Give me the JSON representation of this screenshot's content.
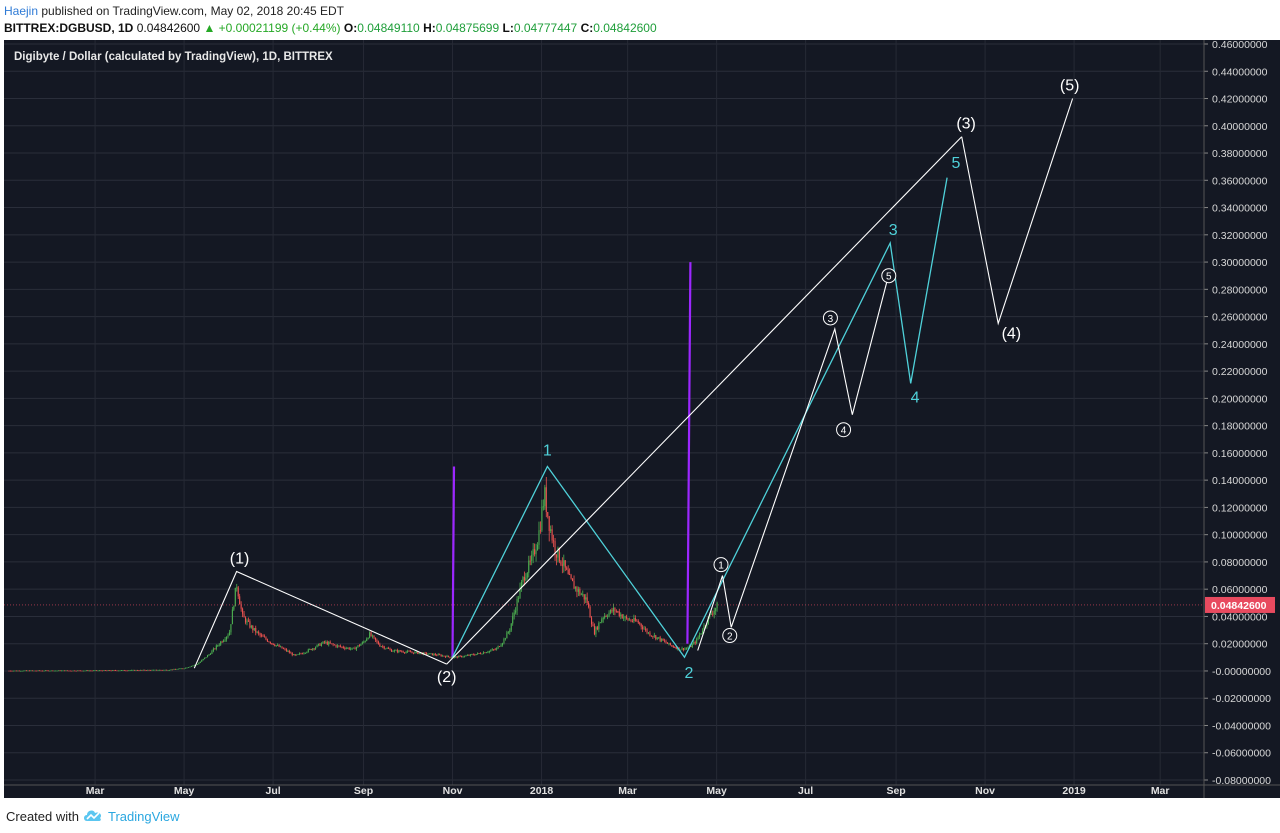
{
  "header": {
    "author": "Haejin",
    "published": "published on TradingView.com, May 02, 2018 20:45 EDT",
    "symbol": "BITTREX:DGBUSD, 1D",
    "last": "0.04842600",
    "change": "▲ +0.00021199 (+0.44%)",
    "o_label": "O:",
    "o_value": "0.04849110",
    "h_label": "H:",
    "h_value": "0.04875699",
    "l_label": "L:",
    "l_value": "0.04777447",
    "c_label": "C:",
    "c_value": "0.04842600"
  },
  "footer": {
    "created_with": "Created with",
    "brand": "TradingView"
  },
  "colors": {
    "background": "#141823",
    "up": "#4caf50",
    "down": "#ef5350",
    "cyan": "#4fd1d9",
    "purple": "#9c27ff",
    "white": "#ffffff",
    "price_tag": "#e84a5f"
  },
  "chart_data": {
    "type": "line",
    "title": "Digibyte / Dollar (calculated by TradingView), 1D, BITTREX",
    "price_tag": "0.04842600",
    "ylim": [
      -0.08,
      0.46
    ],
    "y_ticks": [
      0.46,
      0.44,
      0.42,
      0.4,
      0.38,
      0.36,
      0.34,
      0.32,
      0.3,
      0.28,
      0.26,
      0.24,
      0.22,
      0.2,
      0.18,
      0.16,
      0.14,
      0.12,
      0.1,
      0.08,
      0.06,
      0.04,
      0.02,
      0.0,
      -0.02,
      -0.04,
      -0.06,
      -0.08
    ],
    "y_tick_labels": [
      "0.46000000",
      "0.44000000",
      "0.42000000",
      "0.40000000",
      "0.38000000",
      "0.36000000",
      "0.34000000",
      "0.32000000",
      "0.30000000",
      "0.28000000",
      "0.26000000",
      "0.24000000",
      "0.22000000",
      "0.20000000",
      "0.18000000",
      "0.16000000",
      "0.14000000",
      "0.12000000",
      "0.10000000",
      "0.08000000",
      "0.06000000",
      "0.04000000",
      "0.02000000",
      "-0.00000000",
      "-0.02000000",
      "-0.04000000",
      "-0.06000000",
      "-0.08000000"
    ],
    "x_ticks": [
      {
        "label": "Mar",
        "date": "2017-03-01"
      },
      {
        "label": "May",
        "date": "2017-05-01"
      },
      {
        "label": "Jul",
        "date": "2017-07-01"
      },
      {
        "label": "Sep",
        "date": "2017-09-01"
      },
      {
        "label": "Nov",
        "date": "2017-11-01"
      },
      {
        "label": "2018",
        "date": "2018-01-01"
      },
      {
        "label": "Mar",
        "date": "2018-03-01"
      },
      {
        "label": "May",
        "date": "2018-05-01"
      },
      {
        "label": "Jul",
        "date": "2018-07-01"
      },
      {
        "label": "Sep",
        "date": "2018-09-01"
      },
      {
        "label": "Nov",
        "date": "2018-11-01"
      },
      {
        "label": "2019",
        "date": "2019-01-01"
      },
      {
        "label": "Mar",
        "date": "2019-03-01"
      }
    ],
    "price_series": [
      [
        "2017-01-01",
        0.0002
      ],
      [
        "2017-03-01",
        0.0003
      ],
      [
        "2017-04-20",
        0.0008
      ],
      [
        "2017-05-01",
        0.002
      ],
      [
        "2017-05-10",
        0.005
      ],
      [
        "2017-05-18",
        0.012
      ],
      [
        "2017-05-25",
        0.02
      ],
      [
        "2017-06-01",
        0.028
      ],
      [
        "2017-06-06",
        0.064
      ],
      [
        "2017-06-10",
        0.04
      ],
      [
        "2017-06-16",
        0.032
      ],
      [
        "2017-06-22",
        0.026
      ],
      [
        "2017-07-01",
        0.02
      ],
      [
        "2017-07-10",
        0.015
      ],
      [
        "2017-07-16",
        0.011
      ],
      [
        "2017-07-25",
        0.015
      ],
      [
        "2017-08-05",
        0.021
      ],
      [
        "2017-08-15",
        0.018
      ],
      [
        "2017-08-25",
        0.016
      ],
      [
        "2017-09-01",
        0.021
      ],
      [
        "2017-09-05",
        0.027
      ],
      [
        "2017-09-12",
        0.019
      ],
      [
        "2017-09-20",
        0.015
      ],
      [
        "2017-10-01",
        0.014
      ],
      [
        "2017-10-10",
        0.013
      ],
      [
        "2017-10-20",
        0.012
      ],
      [
        "2017-11-01",
        0.01
      ],
      [
        "2017-11-10",
        0.011
      ],
      [
        "2017-11-20",
        0.013
      ],
      [
        "2017-12-01",
        0.016
      ],
      [
        "2017-12-05",
        0.021
      ],
      [
        "2017-12-10",
        0.03
      ],
      [
        "2017-12-15",
        0.05
      ],
      [
        "2017-12-20",
        0.07
      ],
      [
        "2017-12-25",
        0.08
      ],
      [
        "2017-12-30",
        0.1
      ],
      [
        "2018-01-03",
        0.13
      ],
      [
        "2018-01-06",
        0.11
      ],
      [
        "2018-01-10",
        0.09
      ],
      [
        "2018-01-15",
        0.08
      ],
      [
        "2018-01-20",
        0.067
      ],
      [
        "2018-01-25",
        0.06
      ],
      [
        "2018-02-01",
        0.052
      ],
      [
        "2018-02-06",
        0.028
      ],
      [
        "2018-02-12",
        0.04
      ],
      [
        "2018-02-20",
        0.045
      ],
      [
        "2018-02-28",
        0.038
      ],
      [
        "2018-03-08",
        0.036
      ],
      [
        "2018-03-15",
        0.028
      ],
      [
        "2018-03-22",
        0.024
      ],
      [
        "2018-03-30",
        0.019
      ],
      [
        "2018-04-06",
        0.016
      ],
      [
        "2018-04-12",
        0.017
      ],
      [
        "2018-04-17",
        0.022
      ],
      [
        "2018-04-22",
        0.032
      ],
      [
        "2018-04-27",
        0.042
      ],
      [
        "2018-05-02",
        0.0484
      ]
    ],
    "wave_labels": [
      {
        "text": "(1)",
        "date": "2017-06-08",
        "y": 0.079,
        "color": "white"
      },
      {
        "text": "(2)",
        "date": "2017-10-28",
        "y": -0.008,
        "color": "white"
      },
      {
        "text": "1",
        "date": "2018-01-05",
        "y": 0.158,
        "color": "cyan"
      },
      {
        "text": "2",
        "date": "2018-04-12",
        "y": -0.005,
        "color": "cyan"
      },
      {
        "text": "(3)",
        "date": "2018-10-19",
        "y": 0.398,
        "color": "white"
      },
      {
        "text": "(4)",
        "date": "2018-11-19",
        "y": 0.244,
        "color": "white"
      },
      {
        "text": "(5)",
        "date": "2018-12-29",
        "y": 0.426,
        "color": "white"
      },
      {
        "text": "3",
        "date": "2018-08-30",
        "y": 0.32,
        "color": "cyan"
      },
      {
        "text": "4",
        "date": "2018-09-14",
        "y": 0.197,
        "color": "cyan"
      },
      {
        "text": "5",
        "date": "2018-10-12",
        "y": 0.369,
        "color": "cyan"
      }
    ],
    "circled_labels": [
      {
        "text": "1",
        "date": "2018-05-04",
        "y": 0.078
      },
      {
        "text": "2",
        "date": "2018-05-10",
        "y": 0.026
      },
      {
        "text": "3",
        "date": "2018-07-18",
        "y": 0.259
      },
      {
        "text": "4",
        "date": "2018-07-27",
        "y": 0.177
      },
      {
        "text": "5",
        "date": "2018-08-27",
        "y": 0.29
      }
    ],
    "white_lines": [
      [
        [
          "2017-05-08",
          0.002
        ],
        [
          "2017-06-06",
          0.073
        ],
        [
          "2017-10-28",
          0.005
        ]
      ],
      [
        [
          "2017-10-28",
          0.005
        ],
        [
          "2018-10-16",
          0.392
        ]
      ],
      [
        [
          "2018-10-16",
          0.392
        ],
        [
          "2018-11-10",
          0.255
        ],
        [
          "2018-12-31",
          0.42
        ]
      ],
      [
        [
          "2018-04-18",
          0.015
        ],
        [
          "2018-05-05",
          0.07
        ],
        [
          "2018-05-11",
          0.032
        ],
        [
          "2018-07-21",
          0.251
        ],
        [
          "2018-08-02",
          0.188
        ],
        [
          "2018-08-27",
          0.291
        ]
      ]
    ],
    "cyan_lines": [
      [
        [
          "2017-11-01",
          0.01
        ],
        [
          "2018-01-05",
          0.15
        ],
        [
          "2018-04-09",
          0.01
        ],
        [
          "2018-08-28",
          0.314
        ],
        [
          "2018-09-11",
          0.211
        ],
        [
          "2018-10-06",
          0.362
        ]
      ]
    ],
    "purple_lines": [
      [
        [
          "2017-11-01",
          0.01
        ],
        [
          "2017-11-02",
          0.15
        ]
      ],
      [
        [
          "2018-04-11",
          0.02
        ],
        [
          "2018-04-12",
          0.16
        ],
        [
          "2018-04-13",
          0.3
        ]
      ]
    ]
  }
}
